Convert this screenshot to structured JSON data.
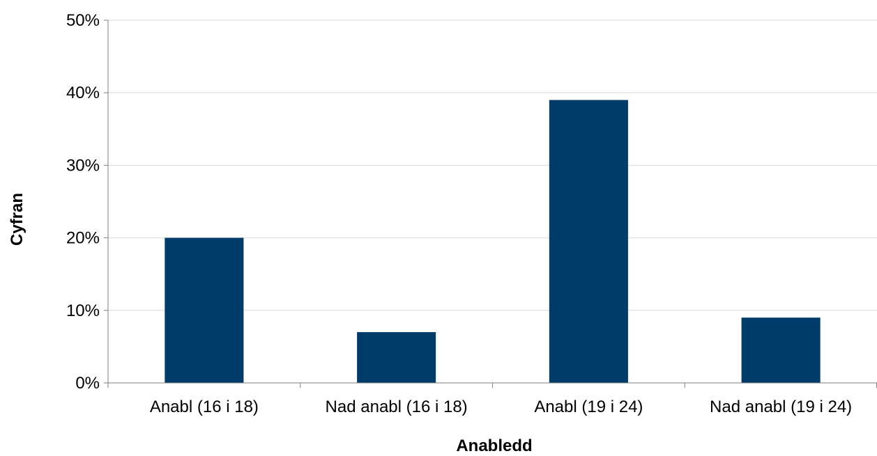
{
  "chart_data": {
    "type": "bar",
    "categories": [
      "Anabl (16 i 18)",
      "Nad anabl (16 i 18)",
      "Anabl (19 i 24)",
      "Nad anabl (19 i 24)"
    ],
    "values": [
      20,
      7,
      39,
      9
    ],
    "xlabel": "Anabledd",
    "ylabel": "Cyfran",
    "ylim": [
      0,
      50
    ],
    "yticks": [
      "0%",
      "10%",
      "20%",
      "30%",
      "40%",
      "50%"
    ],
    "grid": true,
    "bar_color": "#003c69",
    "legend": "none"
  }
}
